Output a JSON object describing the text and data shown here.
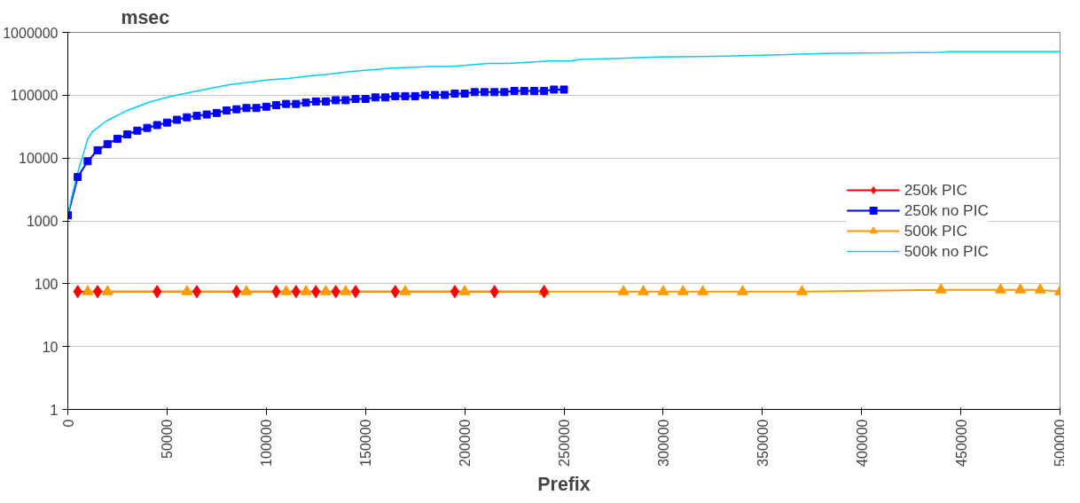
{
  "chart_data": {
    "type": "line",
    "ylabel": "msec",
    "xlabel": "Prefix",
    "log": "y",
    "grid": "y",
    "legend": "right",
    "xlim": [
      0,
      500000
    ],
    "xticks": [
      0,
      50000,
      100000,
      150000,
      200000,
      250000,
      300000,
      350000,
      400000,
      450000,
      500000
    ],
    "ylim": [
      1,
      1000000
    ],
    "yticks": [
      1,
      10,
      100,
      1000,
      10000,
      100000,
      1000000
    ],
    "series": [
      {
        "name": "250k PIC",
        "color": "#ff0000",
        "marker": "diamond",
        "x": [
          5000,
          15000,
          45000,
          65000,
          85000,
          105000,
          115000,
          125000,
          135000,
          145000,
          165000,
          195000,
          215000,
          240000
        ],
        "values": [
          75,
          75,
          75,
          75,
          75,
          75,
          75,
          75,
          75,
          75,
          75,
          75,
          75,
          75
        ]
      },
      {
        "name": "250k no PIC",
        "color": "#0000ff",
        "marker": "square",
        "x": [
          0,
          5000,
          10000,
          15000,
          20000,
          25000,
          30000,
          35000,
          40000,
          45000,
          50000,
          55000,
          60000,
          65000,
          70000,
          75000,
          80000,
          85000,
          90000,
          95000,
          100000,
          105000,
          110000,
          115000,
          120000,
          125000,
          130000,
          135000,
          140000,
          145000,
          150000,
          155000,
          160000,
          165000,
          170000,
          175000,
          180000,
          185000,
          190000,
          195000,
          200000,
          205000,
          210000,
          215000,
          220000,
          225000,
          230000,
          235000,
          240000,
          245000,
          250000
        ],
        "values": [
          1230,
          5000,
          8900,
          13300,
          16700,
          20300,
          23800,
          27300,
          30200,
          33500,
          36700,
          40600,
          44500,
          47100,
          49300,
          52200,
          57200,
          59800,
          62600,
          62600,
          65600,
          69500,
          72700,
          72700,
          76100,
          79600,
          79600,
          83400,
          83400,
          87300,
          87300,
          92300,
          92300,
          96600,
          96600,
          96600,
          101000,
          101000,
          101000,
          106000,
          106000,
          112000,
          112000,
          112000,
          112000,
          117000,
          117000,
          117000,
          117000,
          123000,
          123000
        ]
      },
      {
        "name": "500k PIC",
        "color": "#ff9900",
        "marker": "triangle",
        "x": [
          10000,
          20000,
          60000,
          90000,
          110000,
          120000,
          130000,
          140000,
          170000,
          200000,
          240000,
          280000,
          290000,
          300000,
          310000,
          320000,
          340000,
          370000,
          440000,
          470000,
          480000,
          490000,
          500000
        ],
        "values": [
          75,
          75,
          75,
          75,
          75,
          75,
          75,
          75,
          75,
          75,
          75,
          75,
          75,
          75,
          75,
          75,
          75,
          75,
          80,
          80,
          80,
          80,
          75
        ]
      },
      {
        "name": "500k no PIC",
        "color": "#00ccff",
        "marker": "none",
        "x": [
          0,
          2000,
          5500,
          8000,
          10000,
          12300,
          19100,
          30200,
          41300,
          51500,
          70300,
          81400,
          101000,
          111000,
          122000,
          132000,
          142000,
          162000,
          183000,
          192000,
          212000,
          222000,
          243000,
          253000,
          258000,
          272000,
          297000,
          326000,
          351000,
          385000,
          440000,
          444000,
          500000
        ],
        "values": [
          1230,
          2430,
          6760,
          12000,
          20000,
          26100,
          38400,
          57800,
          77800,
          95500,
          126000,
          147000,
          175000,
          185000,
          203000,
          217000,
          238000,
          267000,
          285000,
          285000,
          320000,
          320000,
          351000,
          351000,
          371000,
          380000,
          405000,
          417000,
          432000,
          465000,
          480000,
          495000,
          495000
        ]
      }
    ]
  }
}
